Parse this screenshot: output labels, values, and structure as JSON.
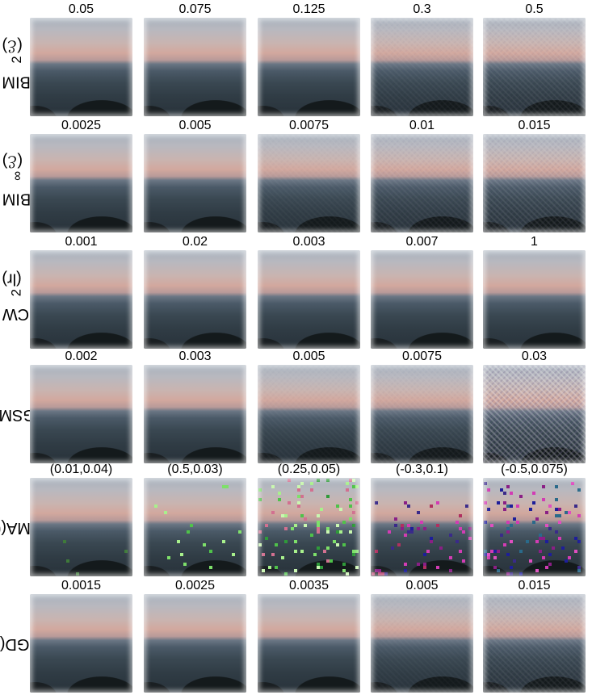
{
  "rows": [
    {
      "label_pre": "BIM l",
      "label_sub": "2",
      "label_post": " (ℰ)",
      "values": [
        "0.05",
        "0.075",
        "0.125",
        "0.3",
        "0.5"
      ]
    },
    {
      "label_pre": "BIM l",
      "label_sub": "∞",
      "label_post": " (ℰ)",
      "values": [
        "0.0025",
        "0.005",
        "0.0075",
        "0.01",
        "0.015"
      ]
    },
    {
      "label_pre": "CW l",
      "label_sub": "2",
      "label_post": "(lr)",
      "values": [
        "0.001",
        "0.02",
        "0.003",
        "0.007",
        "1"
      ]
    },
    {
      "label_pre": "FGSM(ℰ)",
      "label_sub": "",
      "label_post": "",
      "values": [
        "0.002",
        "0.003",
        "0.005",
        "0.0075",
        "0.03"
      ]
    },
    {
      "label_pre": "JSMA(θ,γ)",
      "label_sub": "",
      "label_post": "",
      "values": [
        "(0.01,0.04)",
        "(0.5,0.03)",
        "(0.25,0.05)",
        "(-0.3,0.1)",
        "(-0.5,0.075)"
      ]
    },
    {
      "label_pre": "PGD(ℰ)",
      "label_sub": "",
      "label_post": "",
      "values": [
        "0.0015",
        "0.0025",
        "0.0035",
        "0.005",
        "0.015"
      ]
    }
  ],
  "colors": {
    "sky_top": "#a8b2bd",
    "sunset_pink": "#d2a89e",
    "sea": "#3a4852",
    "perturb_green": "#7ee06a",
    "perturb_magenta": "#d23cb4",
    "perturb_blue": "#1e1e9a"
  }
}
